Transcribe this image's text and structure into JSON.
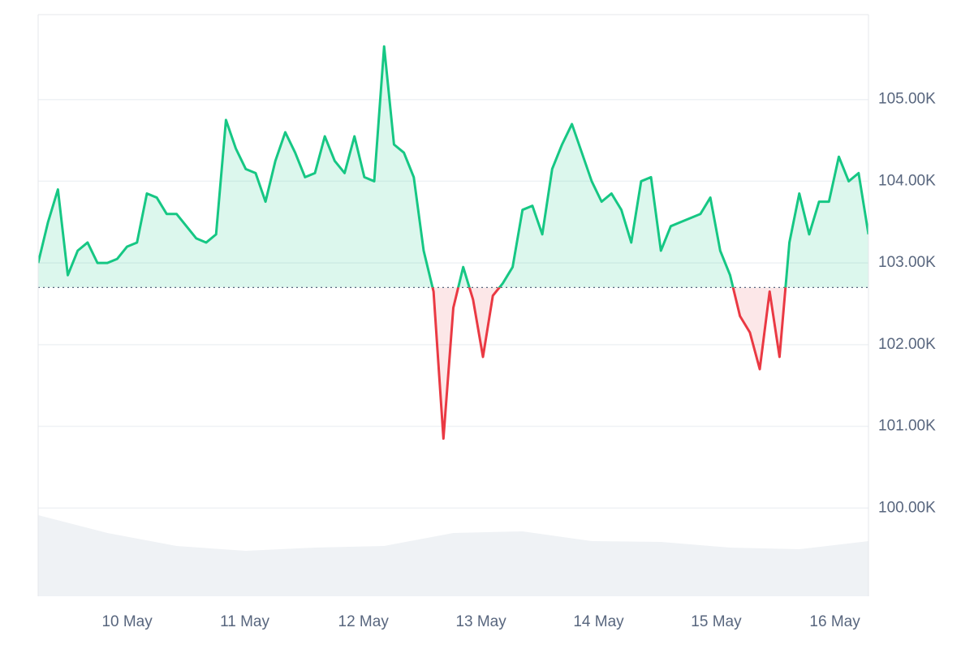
{
  "chart_data": {
    "type": "line",
    "values": [
      103000,
      103500,
      103900,
      102850,
      103150,
      103250,
      103000,
      103000,
      103050,
      103200,
      103250,
      103850,
      103800,
      103600,
      103600,
      103450,
      103300,
      103250,
      103350,
      104750,
      104400,
      104150,
      104100,
      103750,
      104250,
      104600,
      104350,
      104050,
      104100,
      104550,
      104250,
      104100,
      104550,
      104050,
      104000,
      105650,
      104450,
      104350,
      104050,
      103150,
      102650,
      100850,
      102450,
      102950,
      102550,
      101850,
      102600,
      102750,
      102950,
      103650,
      103700,
      103350,
      104150,
      104450,
      104700,
      104350,
      104000,
      103750,
      103850,
      103650,
      103250,
      104000,
      104050,
      103150,
      103450,
      103500,
      103550,
      103600,
      103800,
      103150,
      102850,
      102350,
      102150,
      101700,
      102650,
      101850,
      103250,
      103850,
      103350,
      103750,
      103750,
      104300,
      104000,
      104100,
      103350
    ],
    "baseline": 102700,
    "up_color": "#16c784",
    "down_color": "#ea3943",
    "xlim": [
      0,
      84
    ],
    "xticks": [
      {
        "value": 9.0,
        "label": "10 May"
      },
      {
        "value": 20.9,
        "label": "11 May"
      },
      {
        "value": 32.9,
        "label": "12 May"
      },
      {
        "value": 44.8,
        "label": "13 May"
      },
      {
        "value": 56.7,
        "label": "14 May"
      },
      {
        "value": 68.6,
        "label": "15 May"
      },
      {
        "value": 80.6,
        "label": "16 May"
      }
    ],
    "ylim": [
      98920,
      106040
    ],
    "yticks": [
      {
        "value": 100000,
        "label": "100.00K"
      },
      {
        "value": 101000,
        "label": "101.00K"
      },
      {
        "value": 102000,
        "label": "102.00K"
      },
      {
        "value": 103000,
        "label": "103.00K"
      },
      {
        "value": 104000,
        "label": "104.00K"
      },
      {
        "value": 105000,
        "label": "105.00K"
      }
    ],
    "grid": true,
    "volume": {
      "values": [
        100,
        78,
        62,
        56,
        60,
        62,
        78,
        80,
        68,
        67,
        60,
        58,
        68
      ],
      "lim": [
        0,
        100
      ],
      "color": "#eff2f5"
    }
  }
}
